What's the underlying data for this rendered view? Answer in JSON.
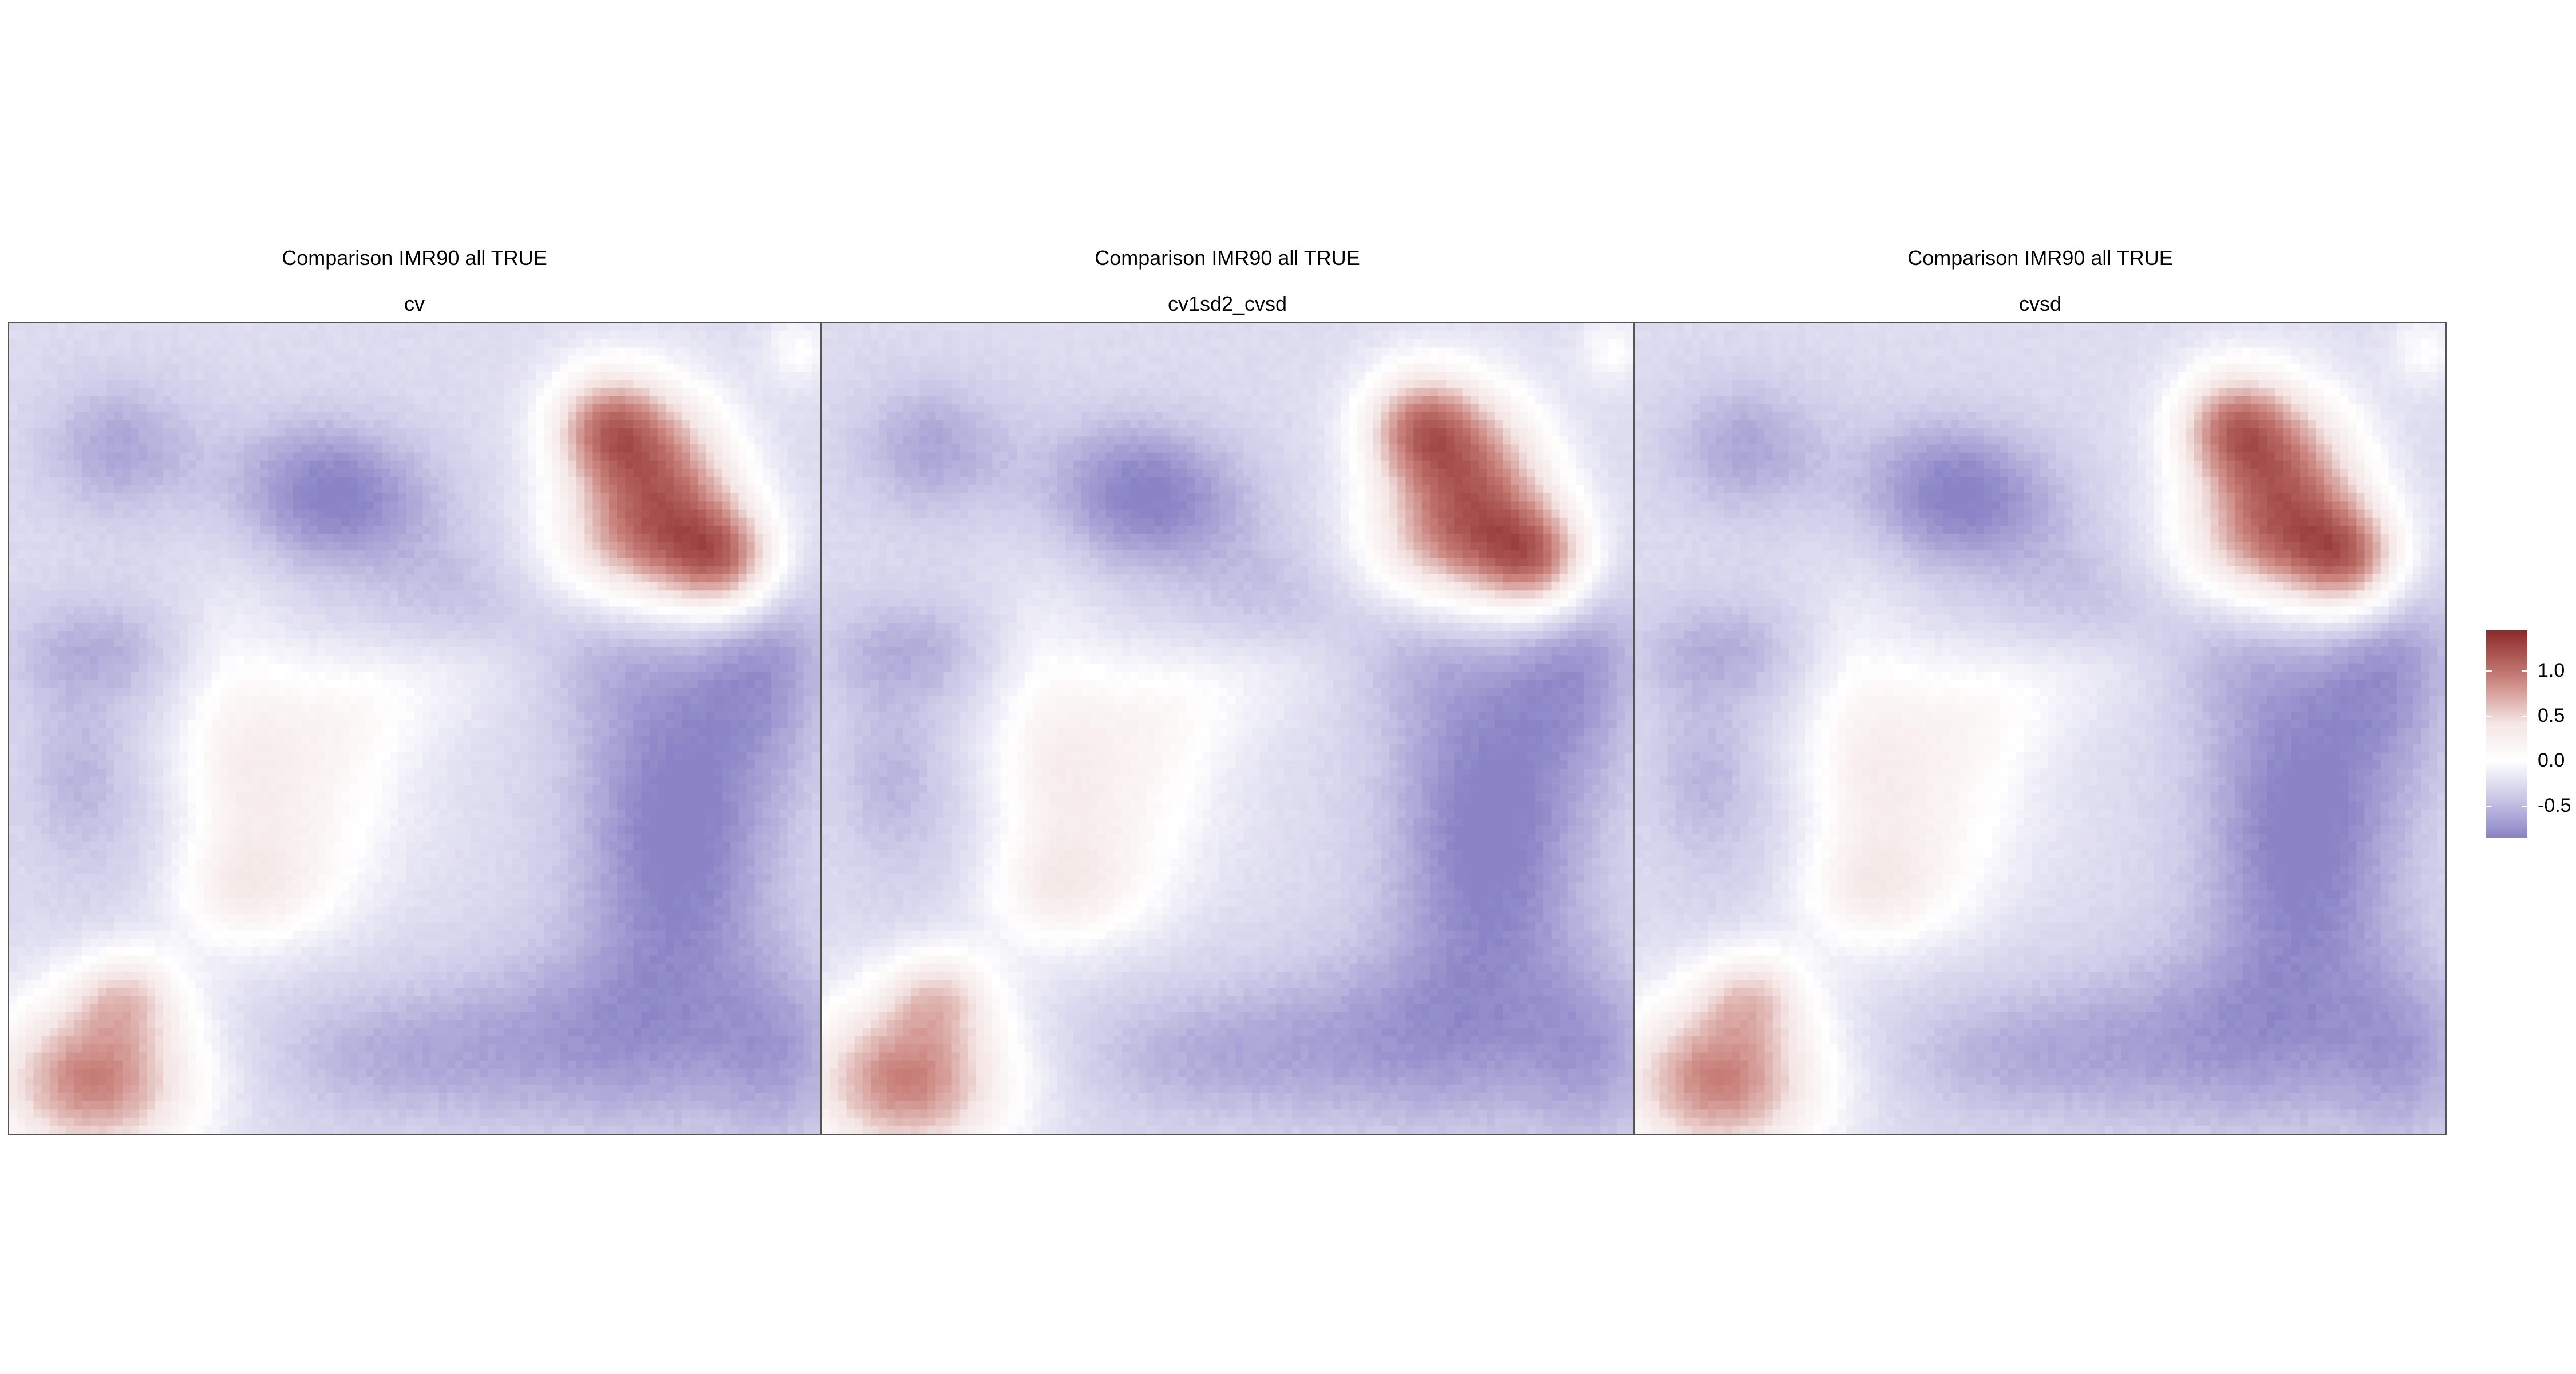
{
  "chart_data": [
    {
      "type": "heatmap",
      "title": "Comparison IMR90 all TRUE",
      "subtitle": "cv",
      "grid": false
    },
    {
      "type": "heatmap",
      "title": "Comparison IMR90 all TRUE",
      "subtitle": "cv1sd2_cvsd",
      "grid": false
    },
    {
      "type": "heatmap",
      "title": "Comparison IMR90 all TRUE",
      "subtitle": "cvsd",
      "grid": false
    }
  ],
  "colorbar": {
    "ticks": [
      "1.0",
      "0.5",
      "0.0",
      "-0.5"
    ],
    "tick_values": [
      1.0,
      0.5,
      0.0,
      -0.5
    ],
    "range": [
      -0.85,
      1.45
    ],
    "placement": "right",
    "colors": {
      "high": "#8b2a2a",
      "mid": "#ffffff",
      "low": "#8a84c6"
    }
  }
}
